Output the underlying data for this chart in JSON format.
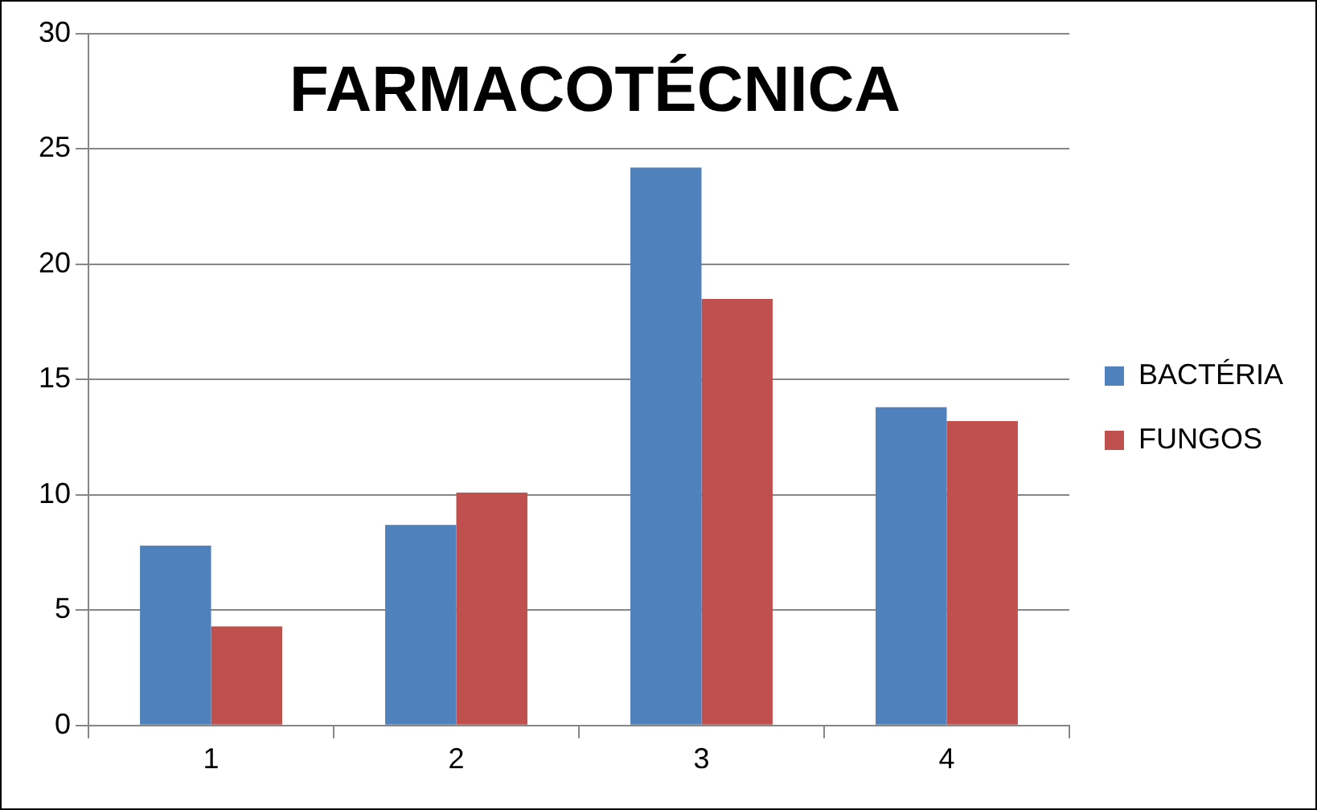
{
  "chart_data": {
    "type": "bar",
    "title": "FARMACOTÉCNICA",
    "categories": [
      "1",
      "2",
      "3",
      "4"
    ],
    "series": [
      {
        "name": "BACTÉRIA",
        "color": "#4f81bd",
        "values": [
          7.8,
          8.7,
          24.2,
          13.8
        ]
      },
      {
        "name": "FUNGOS",
        "color": "#c0504d",
        "values": [
          4.3,
          10.1,
          18.5,
          13.2
        ]
      }
    ],
    "ylim": [
      0,
      30
    ],
    "yticks": [
      0,
      5,
      10,
      15,
      20,
      25,
      30
    ],
    "grid": "y",
    "legend": "right"
  }
}
